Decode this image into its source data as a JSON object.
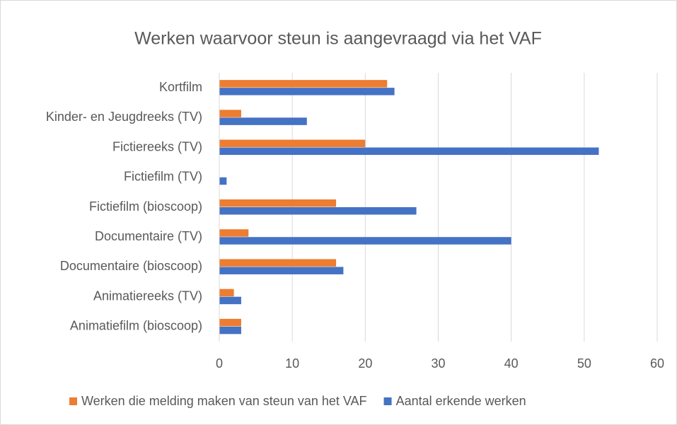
{
  "chart_data": {
    "type": "hbar",
    "title": "Werken waarvoor steun is aangevraagd via het VAF",
    "categories": [
      "Kortfilm",
      "Kinder- en Jeugdreeks (TV)",
      "Fictiereeks (TV)",
      "Fictiefilm (TV)",
      "Fictiefilm (bioscoop)",
      "Documentaire (TV)",
      "Documentaire (bioscoop)",
      "Animatiereeks (TV)",
      "Animatiefilm (bioscoop)"
    ],
    "series": [
      {
        "name": "Werken die melding maken van steun van het VAF",
        "color": "#ed7d31",
        "values": [
          23,
          3,
          20,
          0,
          16,
          4,
          16,
          2,
          3
        ]
      },
      {
        "name": "Aantal erkende werken",
        "color": "#4472c4",
        "values": [
          24,
          12,
          52,
          1,
          27,
          40,
          17,
          3,
          3
        ]
      }
    ],
    "xlim": [
      0,
      60
    ],
    "xticks": [
      0,
      10,
      20,
      30,
      40,
      50,
      60
    ],
    "grid": true,
    "legend": "bottom"
  }
}
